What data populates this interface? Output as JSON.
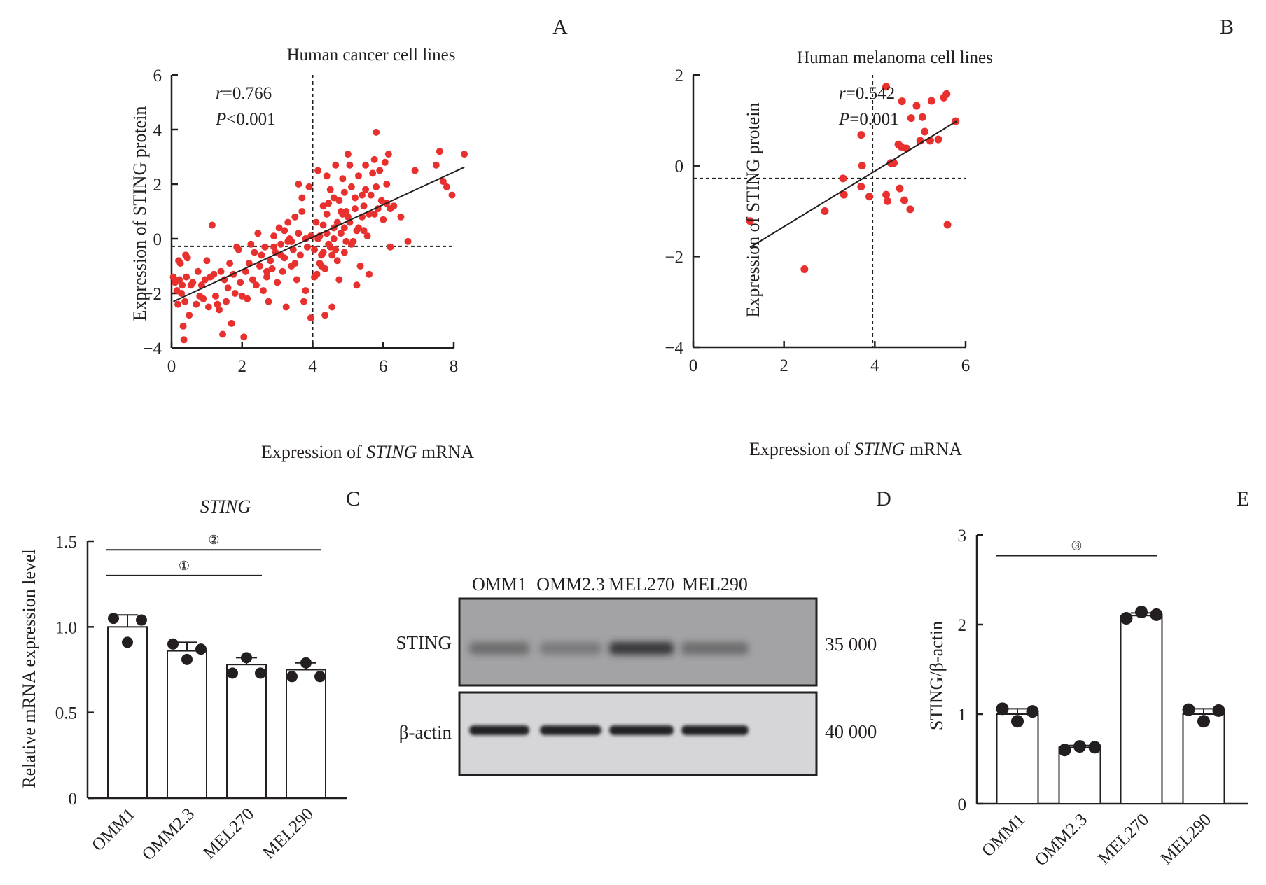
{
  "panel_letters": {
    "A": "A",
    "B": "B",
    "C": "C",
    "D": "D",
    "E": "E"
  },
  "colors": {
    "point": "#e8302e",
    "ink": "#231f20",
    "bar_fill": "#ffffff"
  },
  "chart_data": [
    {
      "id": "A",
      "type": "scatter",
      "title": "Human cancer cell lines",
      "xlabel_prefix": "Expression of ",
      "xlabel_italic": "STING",
      "xlabel_suffix": " mRNA",
      "ylabel": "Expression of STING protein",
      "xlim": [
        0,
        8.3
      ],
      "ylim": [
        -4,
        6
      ],
      "xticks": [
        0,
        2,
        4,
        6,
        8
      ],
      "yticks": [
        -4,
        -2,
        0,
        2,
        4,
        6
      ],
      "xtick_labels": [
        "0",
        "2",
        "4",
        "6",
        "8"
      ],
      "ytick_labels": [
        "−4",
        "−2",
        "0",
        "2",
        "4",
        "6"
      ],
      "stats": {
        "r_label": "r",
        "r_value": "=0.766",
        "p_label": "P",
        "p_value": "<0.001"
      },
      "threshold_x": 4.0,
      "threshold_y": -0.28,
      "fit_line": {
        "x0": 0.05,
        "y0": -2.3,
        "x1": 8.3,
        "y1": 2.62
      },
      "points": [
        [
          0.05,
          -1.4
        ],
        [
          0.1,
          -1.6
        ],
        [
          0.15,
          -1.9
        ],
        [
          0.18,
          -2.4
        ],
        [
          0.2,
          -0.8
        ],
        [
          0.22,
          -1.5
        ],
        [
          0.25,
          -0.9
        ],
        [
          0.28,
          -2.0
        ],
        [
          0.3,
          -1.7
        ],
        [
          0.33,
          -3.2
        ],
        [
          0.35,
          -3.7
        ],
        [
          0.38,
          -2.3
        ],
        [
          0.4,
          -0.6
        ],
        [
          0.42,
          -1.4
        ],
        [
          0.45,
          -0.7
        ],
        [
          0.5,
          -2.8
        ],
        [
          0.55,
          -1.7
        ],
        [
          0.6,
          -1.6
        ],
        [
          0.7,
          -2.4
        ],
        [
          0.75,
          -1.2
        ],
        [
          0.8,
          -2.1
        ],
        [
          0.85,
          -1.7
        ],
        [
          0.9,
          -2.2
        ],
        [
          0.95,
          -1.5
        ],
        [
          1.0,
          -0.8
        ],
        [
          1.05,
          -2.5
        ],
        [
          1.1,
          -1.4
        ],
        [
          1.15,
          0.5
        ],
        [
          1.2,
          -1.3
        ],
        [
          1.25,
          -2.1
        ],
        [
          1.3,
          -2.4
        ],
        [
          1.35,
          -2.6
        ],
        [
          1.4,
          -1.2
        ],
        [
          1.45,
          -3.5
        ],
        [
          1.5,
          -1.5
        ],
        [
          1.55,
          -2.3
        ],
        [
          1.6,
          -1.8
        ],
        [
          1.65,
          -0.9
        ],
        [
          1.7,
          -3.1
        ],
        [
          1.75,
          -1.3
        ],
        [
          1.8,
          -2.0
        ],
        [
          1.85,
          -0.3
        ],
        [
          1.9,
          -0.4
        ],
        [
          1.95,
          -1.6
        ],
        [
          2.0,
          -2.1
        ],
        [
          2.05,
          -3.6
        ],
        [
          2.1,
          -1.2
        ],
        [
          2.15,
          -2.2
        ],
        [
          2.2,
          -0.9
        ],
        [
          2.25,
          -0.2
        ],
        [
          2.3,
          -1.5
        ],
        [
          2.35,
          -0.5
        ],
        [
          2.4,
          -1.7
        ],
        [
          2.45,
          0.2
        ],
        [
          2.5,
          -1.0
        ],
        [
          2.55,
          -0.6
        ],
        [
          2.6,
          -1.9
        ],
        [
          2.65,
          -0.3
        ],
        [
          2.7,
          -1.4
        ],
        [
          2.75,
          -2.3
        ],
        [
          2.8,
          -0.8
        ],
        [
          2.85,
          -1.1
        ],
        [
          2.9,
          0.1
        ],
        [
          2.95,
          -0.5
        ],
        [
          3.0,
          -1.6
        ],
        [
          3.05,
          0.4
        ],
        [
          3.1,
          -0.2
        ],
        [
          3.15,
          -1.2
        ],
        [
          3.2,
          -0.7
        ],
        [
          3.25,
          -2.5
        ],
        [
          3.3,
          -0.1
        ],
        [
          3.35,
          0.0
        ],
        [
          3.4,
          -1.0
        ],
        [
          3.45,
          -0.4
        ],
        [
          3.5,
          0.8
        ],
        [
          3.55,
          -1.5
        ],
        [
          3.6,
          0.2
        ],
        [
          3.65,
          -0.6
        ],
        [
          3.7,
          1.0
        ],
        [
          3.75,
          -2.3
        ],
        [
          3.8,
          0.0
        ],
        [
          3.85,
          -0.3
        ],
        [
          3.9,
          1.9
        ],
        [
          3.95,
          -2.9
        ],
        [
          3.6,
          2.0
        ],
        [
          3.7,
          1.5
        ],
        [
          3.3,
          0.6
        ],
        [
          3.2,
          0.3
        ],
        [
          3.4,
          -0.1
        ],
        [
          2.9,
          -0.3
        ],
        [
          3.8,
          -1.9
        ],
        [
          3.5,
          -0.9
        ],
        [
          3.1,
          -0.6
        ],
        [
          2.7,
          -1.2
        ],
        [
          4.05,
          -0.4
        ],
        [
          4.1,
          0.6
        ],
        [
          4.12,
          -1.3
        ],
        [
          4.15,
          2.5
        ],
        [
          4.2,
          0.1
        ],
        [
          4.25,
          -0.6
        ],
        [
          4.3,
          1.2
        ],
        [
          4.35,
          -2.8
        ],
        [
          4.4,
          0.9
        ],
        [
          4.45,
          -0.2
        ],
        [
          4.5,
          1.8
        ],
        [
          4.55,
          -2.5
        ],
        [
          4.6,
          0.4
        ],
        [
          4.65,
          2.7
        ],
        [
          4.7,
          -0.8
        ],
        [
          4.75,
          1.4
        ],
        [
          4.8,
          0.2
        ],
        [
          4.85,
          2.2
        ],
        [
          4.9,
          -0.5
        ],
        [
          4.95,
          1.0
        ],
        [
          5.0,
          3.1
        ],
        [
          5.05,
          0.6
        ],
        [
          5.1,
          1.9
        ],
        [
          5.15,
          -0.1
        ],
        [
          5.2,
          1.5
        ],
        [
          5.25,
          0.3
        ],
        [
          5.3,
          2.3
        ],
        [
          5.35,
          -1.0
        ],
        [
          5.4,
          0.8
        ],
        [
          5.45,
          1.2
        ],
        [
          5.5,
          2.7
        ],
        [
          5.55,
          0.1
        ],
        [
          5.6,
          -1.3
        ],
        [
          5.65,
          1.6
        ],
        [
          5.7,
          2.4
        ],
        [
          5.75,
          0.9
        ],
        [
          5.8,
          3.9
        ],
        [
          5.85,
          1.1
        ],
        [
          5.9,
          2.5
        ],
        [
          5.95,
          1.4
        ],
        [
          6.0,
          0.7
        ],
        [
          6.05,
          2.8
        ],
        [
          6.1,
          1.3
        ],
        [
          6.15,
          3.1
        ],
        [
          6.2,
          -0.3
        ],
        [
          6.3,
          1.2
        ],
        [
          6.5,
          0.8
        ],
        [
          6.7,
          -0.1
        ],
        [
          6.9,
          2.5
        ],
        [
          7.5,
          2.7
        ],
        [
          7.6,
          3.2
        ],
        [
          7.7,
          2.1
        ],
        [
          7.8,
          1.9
        ],
        [
          8.3,
          3.1
        ],
        [
          7.95,
          1.6
        ],
        [
          4.3,
          0.5
        ],
        [
          4.4,
          0.2
        ],
        [
          4.5,
          -0.3
        ],
        [
          4.6,
          0.0
        ],
        [
          4.7,
          0.6
        ],
        [
          4.8,
          1.0
        ],
        [
          4.9,
          0.4
        ],
        [
          5.0,
          0.8
        ],
        [
          4.2,
          -0.9
        ],
        [
          4.35,
          -1.1
        ],
        [
          4.55,
          -0.6
        ],
        [
          4.65,
          -0.4
        ],
        [
          4.75,
          -1.5
        ],
        [
          5.1,
          -0.2
        ],
        [
          5.25,
          -1.7
        ],
        [
          4.85,
          0.9
        ],
        [
          5.2,
          1.1
        ],
        [
          5.4,
          1.6
        ],
        [
          4.45,
          1.3
        ],
        [
          4.15,
          0.0
        ],
        [
          4.05,
          -1.4
        ],
        [
          4.25,
          -1.0
        ],
        [
          5.6,
          0.9
        ],
        [
          5.3,
          0.4
        ],
        [
          6.2,
          1.1
        ],
        [
          5.8,
          1.9
        ],
        [
          4.95,
          -0.1
        ],
        [
          5.45,
          0.3
        ],
        [
          3.95,
          0.1
        ],
        [
          4.6,
          1.5
        ],
        [
          5.05,
          2.7
        ],
        [
          5.5,
          1.8
        ],
        [
          4.4,
          2.3
        ],
        [
          4.9,
          1.7
        ],
        [
          6.1,
          2.0
        ],
        [
          5.75,
          2.9
        ],
        [
          4.3,
          -0.5
        ]
      ]
    },
    {
      "id": "B",
      "type": "scatter",
      "title": "Human melanoma cell lines",
      "xlabel_prefix": "Expression of ",
      "xlabel_italic": "STING",
      "xlabel_suffix": " mRNA",
      "ylabel": "Expression of STING protein",
      "xlim": [
        0,
        6
      ],
      "ylim": [
        -4,
        2
      ],
      "xticks": [
        0,
        2,
        4,
        6
      ],
      "yticks": [
        -4,
        -2,
        0,
        2
      ],
      "xtick_labels": [
        "0",
        "2",
        "4",
        "6"
      ],
      "ytick_labels": [
        "−4",
        "−2",
        "0",
        "2"
      ],
      "stats": {
        "r_label": "r",
        "r_value": "=0.542",
        "p_label": "P",
        "p_value": "=0.001"
      },
      "threshold_x": 3.95,
      "threshold_y": -0.28,
      "fit_line": {
        "x0": 1.25,
        "y0": -1.8,
        "x1": 5.8,
        "y1": 0.98
      },
      "points": [
        [
          1.25,
          -1.22
        ],
        [
          2.45,
          -2.28
        ],
        [
          2.9,
          -1.0
        ],
        [
          3.3,
          -0.28
        ],
        [
          3.32,
          -0.64
        ],
        [
          3.7,
          0.68
        ],
        [
          3.72,
          0.0
        ],
        [
          3.7,
          -0.46
        ],
        [
          3.88,
          -0.68
        ],
        [
          4.25,
          1.74
        ],
        [
          4.25,
          -0.64
        ],
        [
          4.28,
          -0.78
        ],
        [
          4.35,
          0.06
        ],
        [
          4.42,
          0.06
        ],
        [
          4.52,
          0.47
        ],
        [
          4.55,
          -0.5
        ],
        [
          4.6,
          1.42
        ],
        [
          4.58,
          0.42
        ],
        [
          4.65,
          -0.76
        ],
        [
          4.7,
          0.38
        ],
        [
          4.78,
          -0.96
        ],
        [
          4.8,
          1.05
        ],
        [
          4.92,
          1.32
        ],
        [
          5.0,
          0.55
        ],
        [
          5.05,
          1.07
        ],
        [
          5.1,
          0.75
        ],
        [
          5.22,
          0.55
        ],
        [
          5.25,
          1.43
        ],
        [
          5.4,
          0.58
        ],
        [
          5.52,
          1.5
        ],
        [
          5.58,
          1.58
        ],
        [
          5.6,
          -1.3
        ],
        [
          5.78,
          0.98
        ]
      ]
    },
    {
      "id": "C",
      "type": "bar",
      "title": "STING",
      "ylabel": "Relative mRNA expression level",
      "categories": [
        "OMM1",
        "OMM2.3",
        "MEL270",
        "MEL290"
      ],
      "values": [
        1.0,
        0.86,
        0.78,
        0.75
      ],
      "errors": [
        0.07,
        0.05,
        0.04,
        0.04
      ],
      "replicates": [
        [
          1.05,
          0.91,
          1.04
        ],
        [
          0.9,
          0.81,
          0.87
        ],
        [
          0.73,
          0.82,
          0.73
        ],
        [
          0.71,
          0.79,
          0.71
        ]
      ],
      "ylim": [
        0,
        1.5
      ],
      "yticks": [
        0,
        0.5,
        1.0,
        1.5
      ],
      "ytick_labels": [
        "0",
        "0.5",
        "1.0",
        "1.5"
      ],
      "significance": [
        {
          "label": "②",
          "from": 0,
          "to": 3,
          "y": 1.45
        },
        {
          "label": "①",
          "from": 0,
          "to": 2,
          "y": 1.3
        }
      ]
    },
    {
      "id": "E",
      "type": "bar",
      "title": "",
      "ylabel": "STING/β-actin",
      "categories": [
        "OMM1",
        "OMM2.3",
        "MEL270",
        "MEL290"
      ],
      "values": [
        1.0,
        0.63,
        2.1,
        1.0
      ],
      "errors": [
        0.06,
        0.02,
        0.03,
        0.06
      ],
      "replicates": [
        [
          1.06,
          0.92,
          1.03
        ],
        [
          0.6,
          0.64,
          0.63
        ],
        [
          2.07,
          2.14,
          2.11
        ],
        [
          1.05,
          0.92,
          1.04
        ]
      ],
      "ylim": [
        0,
        3
      ],
      "yticks": [
        0,
        1,
        2,
        3
      ],
      "ytick_labels": [
        "0",
        "1",
        "2",
        "3"
      ],
      "significance": [
        {
          "label": "③",
          "from": 0,
          "to": 2,
          "y": 2.77
        }
      ]
    }
  ],
  "western_blot": {
    "lanes": [
      "OMM1",
      "OMM2.3",
      "MEL270",
      "MEL290"
    ],
    "rows": [
      {
        "label": "STING",
        "mw": "35 000",
        "relative_intensity": [
          0.45,
          0.35,
          0.85,
          0.45
        ]
      },
      {
        "label": "β-actin",
        "mw": "40 000",
        "relative_intensity": [
          0.9,
          0.9,
          0.9,
          0.9
        ]
      }
    ]
  }
}
